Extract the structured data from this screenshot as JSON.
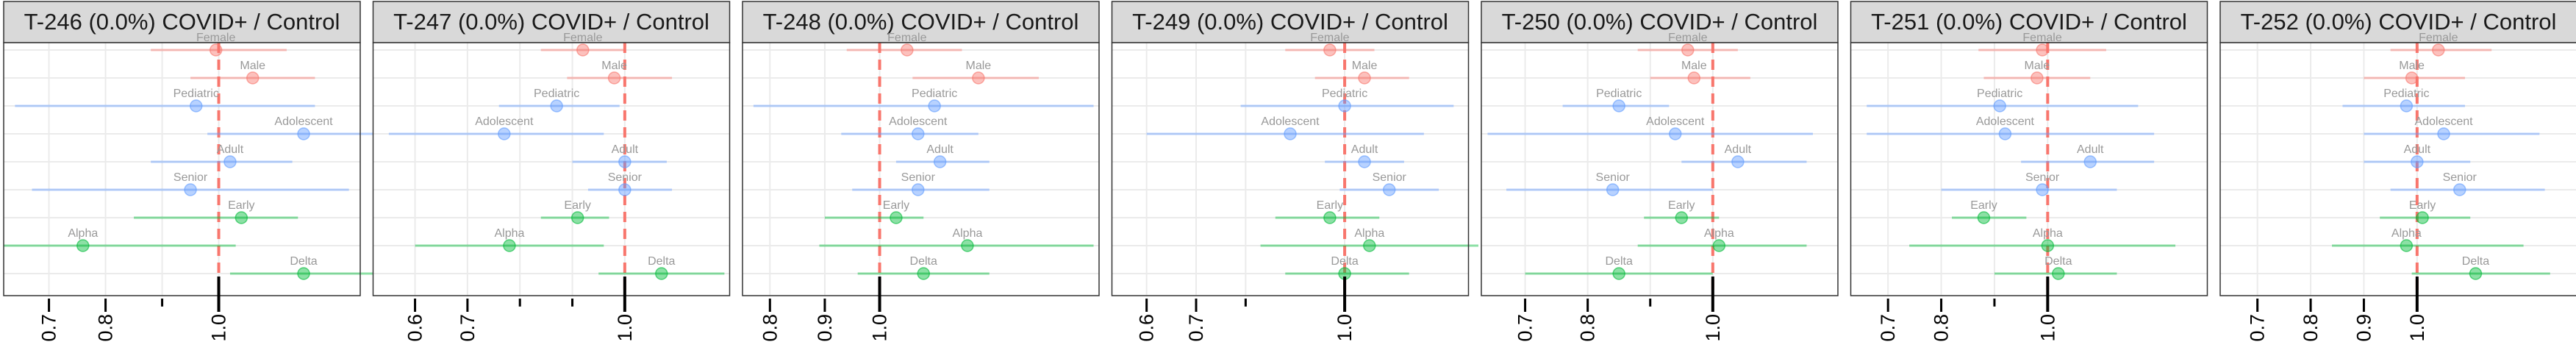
{
  "colors": {
    "strip_fill": "#d9d9d9",
    "strip_border": "#333333",
    "panel_border": "#333333",
    "grid": "#ebebeb",
    "reference_line": "#f8766d",
    "sex": "#f8766d",
    "age": "#619cff",
    "variant": "#00ba38",
    "label_text": "#999999",
    "tick": "#000000"
  },
  "chart_data": [
    {
      "type": "forest",
      "title": "T-246 (0.0%) COVID+ / Control",
      "xlim": [
        0.62,
        1.25
      ],
      "ticks": [
        0.7,
        0.8,
        1.0
      ],
      "tick_labels": [
        "0.7",
        "0.8",
        "1.0"
      ],
      "minor_ticks": [
        0.9
      ],
      "reference": 1.0,
      "grid": true,
      "rows": [
        {
          "label": "Female",
          "group": "sex",
          "estimate": 0.995,
          "lower": 0.88,
          "upper": 1.12
        },
        {
          "label": "Male",
          "group": "sex",
          "estimate": 1.06,
          "lower": 0.95,
          "upper": 1.17
        },
        {
          "label": "Pediatric",
          "group": "age",
          "estimate": 0.96,
          "lower": 0.64,
          "upper": 1.17
        },
        {
          "label": "Adolescent",
          "group": "age",
          "estimate": 1.15,
          "lower": 0.98,
          "upper": 1.34
        },
        {
          "label": "Adult",
          "group": "age",
          "estimate": 1.02,
          "lower": 0.88,
          "upper": 1.13
        },
        {
          "label": "Senior",
          "group": "age",
          "estimate": 0.95,
          "lower": 0.67,
          "upper": 1.23
        },
        {
          "label": "Early",
          "group": "variant",
          "estimate": 1.04,
          "lower": 0.85,
          "upper": 1.14
        },
        {
          "label": "Alpha",
          "group": "variant",
          "estimate": 0.76,
          "lower": 0.62,
          "upper": 1.03
        },
        {
          "label": "Delta",
          "group": "variant",
          "estimate": 1.15,
          "lower": 1.02,
          "upper": 1.28
        }
      ]
    },
    {
      "type": "forest",
      "title": "T-247 (0.0%) COVID+ / Control",
      "xlim": [
        0.52,
        1.2
      ],
      "ticks": [
        0.6,
        0.7,
        1.0
      ],
      "tick_labels": [
        "0.6",
        "0.7",
        "1.0"
      ],
      "minor_ticks": [
        0.8,
        0.9
      ],
      "reference": 1.0,
      "grid": true,
      "rows": [
        {
          "label": "Female",
          "group": "sex",
          "estimate": 0.92,
          "lower": 0.84,
          "upper": 1.0
        },
        {
          "label": "Male",
          "group": "sex",
          "estimate": 0.98,
          "lower": 0.89,
          "upper": 1.09
        },
        {
          "label": "Pediatric",
          "group": "age",
          "estimate": 0.87,
          "lower": 0.76,
          "upper": 0.99
        },
        {
          "label": "Adolescent",
          "group": "age",
          "estimate": 0.77,
          "lower": 0.55,
          "upper": 0.96
        },
        {
          "label": "Adult",
          "group": "age",
          "estimate": 1.0,
          "lower": 0.9,
          "upper": 1.08
        },
        {
          "label": "Senior",
          "group": "age",
          "estimate": 1.0,
          "lower": 0.93,
          "upper": 1.09
        },
        {
          "label": "Early",
          "group": "variant",
          "estimate": 0.91,
          "lower": 0.84,
          "upper": 0.97
        },
        {
          "label": "Alpha",
          "group": "variant",
          "estimate": 0.78,
          "lower": 0.6,
          "upper": 0.96
        },
        {
          "label": "Delta",
          "group": "variant",
          "estimate": 1.07,
          "lower": 0.95,
          "upper": 1.19
        }
      ]
    },
    {
      "type": "forest",
      "title": "T-248 (0.0%) COVID+ / Control",
      "xlim": [
        0.75,
        1.4
      ],
      "ticks": [
        0.8,
        0.9,
        1.0
      ],
      "tick_labels": [
        "0.8",
        "0.9",
        "1.0"
      ],
      "minor_ticks": [],
      "reference": 1.0,
      "grid": true,
      "rows": [
        {
          "label": "Female",
          "group": "sex",
          "estimate": 1.05,
          "lower": 0.94,
          "upper": 1.15
        },
        {
          "label": "Male",
          "group": "sex",
          "estimate": 1.18,
          "lower": 1.06,
          "upper": 1.29
        },
        {
          "label": "Pediatric",
          "group": "age",
          "estimate": 1.1,
          "lower": 0.77,
          "upper": 1.39
        },
        {
          "label": "Adolescent",
          "group": "age",
          "estimate": 1.07,
          "lower": 0.93,
          "upper": 1.18
        },
        {
          "label": "Adult",
          "group": "age",
          "estimate": 1.11,
          "lower": 1.03,
          "upper": 1.2
        },
        {
          "label": "Senior",
          "group": "age",
          "estimate": 1.07,
          "lower": 0.95,
          "upper": 1.2
        },
        {
          "label": "Early",
          "group": "variant",
          "estimate": 1.03,
          "lower": 0.9,
          "upper": 1.08
        },
        {
          "label": "Alpha",
          "group": "variant",
          "estimate": 1.16,
          "lower": 0.89,
          "upper": 1.39
        },
        {
          "label": "Delta",
          "group": "variant",
          "estimate": 1.08,
          "lower": 0.96,
          "upper": 1.2
        }
      ]
    },
    {
      "type": "forest",
      "title": "T-249 (0.0%) COVID+ / Control",
      "xlim": [
        0.53,
        1.25
      ],
      "ticks": [
        0.6,
        0.7,
        1.0
      ],
      "tick_labels": [
        "0.6",
        "0.7",
        "1.0"
      ],
      "minor_ticks": [
        0.8
      ],
      "reference": 1.0,
      "grid": true,
      "rows": [
        {
          "label": "Female",
          "group": "sex",
          "estimate": 0.97,
          "lower": 0.88,
          "upper": 1.06
        },
        {
          "label": "Male",
          "group": "sex",
          "estimate": 1.04,
          "lower": 0.94,
          "upper": 1.13
        },
        {
          "label": "Pediatric",
          "group": "age",
          "estimate": 1.0,
          "lower": 0.79,
          "upper": 1.22
        },
        {
          "label": "Adolescent",
          "group": "age",
          "estimate": 0.89,
          "lower": 0.6,
          "upper": 1.16
        },
        {
          "label": "Adult",
          "group": "age",
          "estimate": 1.04,
          "lower": 0.96,
          "upper": 1.12
        },
        {
          "label": "Senior",
          "group": "age",
          "estimate": 1.09,
          "lower": 0.99,
          "upper": 1.19
        },
        {
          "label": "Early",
          "group": "variant",
          "estimate": 0.97,
          "lower": 0.86,
          "upper": 1.07
        },
        {
          "label": "Alpha",
          "group": "variant",
          "estimate": 1.05,
          "lower": 0.83,
          "upper": 1.27
        },
        {
          "label": "Delta",
          "group": "variant",
          "estimate": 1.0,
          "lower": 0.88,
          "upper": 1.13
        }
      ]
    },
    {
      "type": "forest",
      "title": "T-250 (0.0%) COVID+ / Control",
      "xlim": [
        0.63,
        1.2
      ],
      "ticks": [
        0.7,
        0.8,
        1.0
      ],
      "tick_labels": [
        "0.7",
        "0.8",
        "1.0"
      ],
      "minor_ticks": [
        0.9
      ],
      "reference": 1.0,
      "grid": true,
      "rows": [
        {
          "label": "Female",
          "group": "sex",
          "estimate": 0.96,
          "lower": 0.88,
          "upper": 1.04
        },
        {
          "label": "Male",
          "group": "sex",
          "estimate": 0.97,
          "lower": 0.9,
          "upper": 1.06
        },
        {
          "label": "Pediatric",
          "group": "age",
          "estimate": 0.85,
          "lower": 0.76,
          "upper": 0.93
        },
        {
          "label": "Adolescent",
          "group": "age",
          "estimate": 0.94,
          "lower": 0.64,
          "upper": 1.16
        },
        {
          "label": "Adult",
          "group": "age",
          "estimate": 1.04,
          "lower": 0.95,
          "upper": 1.15
        },
        {
          "label": "Senior",
          "group": "age",
          "estimate": 0.84,
          "lower": 0.67,
          "upper": 1.0
        },
        {
          "label": "Early",
          "group": "variant",
          "estimate": 0.95,
          "lower": 0.89,
          "upper": 1.01
        },
        {
          "label": "Alpha",
          "group": "variant",
          "estimate": 1.01,
          "lower": 0.88,
          "upper": 1.15
        },
        {
          "label": "Delta",
          "group": "variant",
          "estimate": 0.85,
          "lower": 0.7,
          "upper": 1.0
        }
      ]
    },
    {
      "type": "forest",
      "title": "T-251 (0.0%) COVID+ / Control",
      "xlim": [
        0.63,
        1.3
      ],
      "ticks": [
        0.7,
        0.8,
        1.0
      ],
      "tick_labels": [
        "0.7",
        "0.8",
        "1.0"
      ],
      "minor_ticks": [
        0.9
      ],
      "reference": 1.0,
      "grid": true,
      "rows": [
        {
          "label": "Female",
          "group": "sex",
          "estimate": 0.99,
          "lower": 0.87,
          "upper": 1.11
        },
        {
          "label": "Male",
          "group": "sex",
          "estimate": 0.98,
          "lower": 0.88,
          "upper": 1.08
        },
        {
          "label": "Pediatric",
          "group": "age",
          "estimate": 0.91,
          "lower": 0.66,
          "upper": 1.17
        },
        {
          "label": "Adolescent",
          "group": "age",
          "estimate": 0.92,
          "lower": 0.66,
          "upper": 1.2
        },
        {
          "label": "Adult",
          "group": "age",
          "estimate": 1.08,
          "lower": 0.95,
          "upper": 1.2
        },
        {
          "label": "Senior",
          "group": "age",
          "estimate": 0.99,
          "lower": 0.8,
          "upper": 1.13
        },
        {
          "label": "Early",
          "group": "variant",
          "estimate": 0.88,
          "lower": 0.82,
          "upper": 0.96
        },
        {
          "label": "Alpha",
          "group": "variant",
          "estimate": 1.0,
          "lower": 0.74,
          "upper": 1.24
        },
        {
          "label": "Delta",
          "group": "variant",
          "estimate": 1.02,
          "lower": 0.9,
          "upper": 1.13
        }
      ]
    },
    {
      "type": "forest",
      "title": "T-252 (0.0%) COVID+ / Control",
      "xlim": [
        0.63,
        1.3
      ],
      "ticks": [
        0.7,
        0.8,
        0.9,
        1.0
      ],
      "tick_labels": [
        "0.7",
        "0.8",
        "0.9",
        "1.0"
      ],
      "minor_ticks": [],
      "reference": 1.0,
      "grid": true,
      "rows": [
        {
          "label": "Female",
          "group": "sex",
          "estimate": 1.04,
          "lower": 0.95,
          "upper": 1.14
        },
        {
          "label": "Male",
          "group": "sex",
          "estimate": 0.99,
          "lower": 0.9,
          "upper": 1.09
        },
        {
          "label": "Pediatric",
          "group": "age",
          "estimate": 0.98,
          "lower": 0.86,
          "upper": 1.09
        },
        {
          "label": "Adolescent",
          "group": "age",
          "estimate": 1.05,
          "lower": 0.9,
          "upper": 1.23
        },
        {
          "label": "Adult",
          "group": "age",
          "estimate": 1.0,
          "lower": 0.9,
          "upper": 1.1
        },
        {
          "label": "Senior",
          "group": "age",
          "estimate": 1.08,
          "lower": 0.95,
          "upper": 1.24
        },
        {
          "label": "Early",
          "group": "variant",
          "estimate": 1.01,
          "lower": 0.93,
          "upper": 1.1
        },
        {
          "label": "Alpha",
          "group": "variant",
          "estimate": 0.98,
          "lower": 0.84,
          "upper": 1.2
        },
        {
          "label": "Delta",
          "group": "variant",
          "estimate": 1.11,
          "lower": 0.99,
          "upper": 1.25
        }
      ]
    }
  ]
}
